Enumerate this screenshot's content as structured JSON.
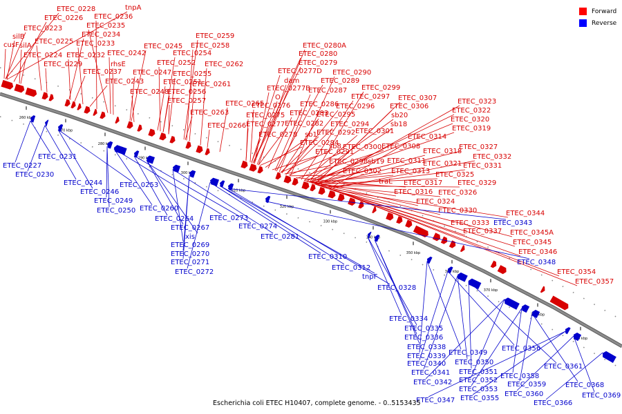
{
  "caption": "Escherichia coli ETEC H10407, complete genome. - 0..5153435",
  "legend": {
    "forward_label": "Forward",
    "reverse_label": "Reverse",
    "forward_color": "#ff0000",
    "reverse_color": "#0000ff"
  },
  "colors": {
    "forward": "#d80000",
    "reverse": "#0000cc",
    "backbone": "#8c8c8c"
  },
  "ticks": [
    "260 kbp",
    "270 kbp",
    "280 kbp",
    "290 kbp",
    "300 kbp",
    "310 kbp",
    "320 kbp",
    "330 kbp",
    "340 kbp",
    "350 kbp",
    "360 kbp",
    "370 kbp",
    "380 kbp",
    "390 kbp"
  ],
  "forward_genes": [
    "tnpA",
    "ETEC_0228",
    "ETEC_0236",
    "ETEC_0226",
    "ETEC_0235",
    "ETEC_0223",
    "ETEC_0234",
    "silB",
    "ETEC_0225",
    "ETEC_0233",
    "cusF",
    "silA",
    "ETEC_0245",
    "ETEC_0242",
    "ETEC_0232",
    "ETEC_0224",
    "rhsE",
    "ETEC_0229",
    "ETEC_0237",
    "ETEC_0243",
    "ETEC_0247",
    "ETEC_0248",
    "ETEC_0259",
    "ETEC_0258",
    "ETEC_0254",
    "ETEC_0252",
    "ETEC_0262",
    "ETEC_0255",
    "ETEC_0251",
    "ETEC_0261",
    "ETEC_0256",
    "ETEC_0257",
    "ETEC_0265",
    "ETEC_0263",
    "ETEC_0266",
    "ETEC_0280A",
    "ETEC_0280",
    "ETEC_0279",
    "ETEC_0277D",
    "ETEC_0290",
    "dam",
    "ETEC_0289",
    "ETEC_0277B",
    "ETEC_0287",
    "ETEC_0299",
    "O",
    "ETEC_0286",
    "ETEC_0297",
    "ETEC_0307",
    "ETEC_0276",
    "ETEC_0296",
    "ETEC_0306",
    "ETEC_0323",
    "ETEC_0283",
    "ETEC_0295",
    "sb20",
    "ETEC_0322",
    "ETEC_0275",
    "ETEC_0282",
    "ETEC_0294",
    "sb18",
    "ETEC_0320",
    "ETEC_0277",
    "ETEC_0292",
    "ETEC_0301",
    "ETEC_0319",
    "ETEC_0278",
    "sb1",
    "ETEC_0314",
    "ETEC_0284",
    "ETEC_0291",
    "sb8",
    "ETEC_0300",
    "ETEC_0308",
    "ETEC_0318",
    "ETEC_0327",
    "ETEC_0311",
    "ETEC_0332",
    "ETEC_0298",
    "sb19",
    "ETEC_0321",
    "ETEC_0331",
    "ETEC_0302",
    "ETEC_0313",
    "ETEC_0325",
    "traE",
    "ETEC_0317",
    "ETEC_0329",
    "ETEC_0316",
    "ETEC_0326",
    "ETEC_0324",
    "ETEC_0330",
    "ETEC_0333",
    "ETEC_0337",
    "ETEC_0344",
    "ETEC_0345A",
    "ETEC_0345",
    "ETEC_0346",
    "ETEC_0354",
    "ETEC_0357"
  ],
  "reverse_genes": [
    "ETEC_0227",
    "ETEC_0231",
    "ETEC_0230",
    "ETEC_0244",
    "ETEC_0246",
    "ETEC_0253",
    "ETEC_0249",
    "ETEC_0250",
    "ETEC_0260",
    "ETEC_0273",
    "ETEC_0264",
    "ETEC_0274",
    "ETEC_0267",
    "xis",
    "ETEC_0281",
    "ETEC_0269",
    "ETEC_0270",
    "ETEC_0271",
    "ETEC_0272",
    "ETEC_0310",
    "ETEC_0312",
    "tnpF",
    "ETEC_0328",
    "ETEC_0343",
    "ETEC_0348",
    "ETEC_0334",
    "ETEC_0335",
    "ETEC_0336",
    "ETEC_0338",
    "ETEC_0339",
    "ETEC_0349",
    "ETEC_0340",
    "ETEC_0356",
    "ETEC_0350",
    "ETEC_0341",
    "ETEC_0351",
    "ETEC_0361",
    "ETEC_0342",
    "ETEC_0352",
    "ETEC_0358",
    "ETEC_0353",
    "ETEC_0359",
    "ETEC_0368",
    "ETEC_0347",
    "ETEC_0355",
    "ETEC_0360",
    "ETEC_0369",
    "ETEC_0366"
  ]
}
